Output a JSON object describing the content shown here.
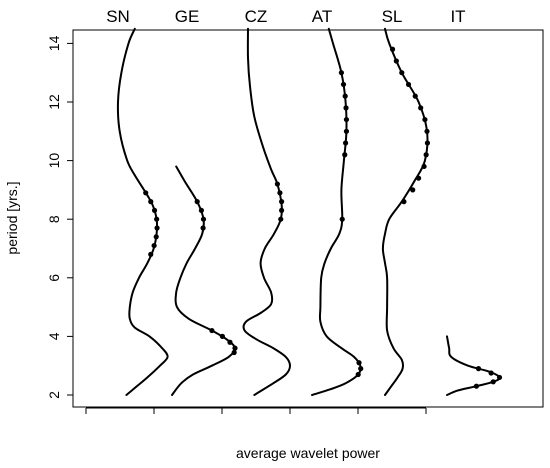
{
  "chart_data": {
    "type": "line",
    "title": "",
    "xlabel": "average wavelet power",
    "ylabel": "period [yrs.]",
    "ylim": [
      2,
      14.5
    ],
    "yticks": [
      2,
      4,
      6,
      8,
      10,
      12,
      14
    ],
    "x_tick_count": 6,
    "grid": false,
    "legend": "none",
    "line_color": "#000000",
    "series": [
      {
        "name": "SN",
        "points": [
          {
            "y": 14.5,
            "x": 0.4
          },
          {
            "y": 14.0,
            "x": 0.25
          },
          {
            "y": 13.0,
            "x": 0.08
          },
          {
            "y": 12.0,
            "x": 0.0
          },
          {
            "y": 11.0,
            "x": 0.04
          },
          {
            "y": 10.0,
            "x": 0.22
          },
          {
            "y": 9.5,
            "x": 0.4
          },
          {
            "y": 9.0,
            "x": 0.62
          },
          {
            "y": 8.5,
            "x": 0.82
          },
          {
            "y": 8.0,
            "x": 0.92
          },
          {
            "y": 7.5,
            "x": 0.92
          },
          {
            "y": 7.0,
            "x": 0.85
          },
          {
            "y": 6.5,
            "x": 0.7
          },
          {
            "y": 6.0,
            "x": 0.5
          },
          {
            "y": 5.5,
            "x": 0.35
          },
          {
            "y": 5.0,
            "x": 0.28
          },
          {
            "y": 4.6,
            "x": 0.28
          },
          {
            "y": 4.3,
            "x": 0.4
          },
          {
            "y": 4.0,
            "x": 0.75
          },
          {
            "y": 3.6,
            "x": 1.05
          },
          {
            "y": 3.3,
            "x": 1.18
          },
          {
            "y": 3.0,
            "x": 1.0
          },
          {
            "y": 2.6,
            "x": 0.7
          },
          {
            "y": 2.3,
            "x": 0.45
          },
          {
            "y": 2.0,
            "x": 0.2
          }
        ],
        "significant": [
          {
            "y": 8.9,
            "x": 0.66
          },
          {
            "y": 8.6,
            "x": 0.78
          },
          {
            "y": 8.3,
            "x": 0.87
          },
          {
            "y": 8.0,
            "x": 0.92
          },
          {
            "y": 7.7,
            "x": 0.93
          },
          {
            "y": 7.4,
            "x": 0.91
          },
          {
            "y": 7.1,
            "x": 0.86
          },
          {
            "y": 6.8,
            "x": 0.78
          }
        ]
      },
      {
        "name": "GE",
        "points": [
          {
            "y": 9.8,
            "x": 0.1
          },
          {
            "y": 9.3,
            "x": 0.3
          },
          {
            "y": 8.6,
            "x": 0.6
          },
          {
            "y": 8.0,
            "x": 0.75
          },
          {
            "y": 7.5,
            "x": 0.72
          },
          {
            "y": 7.0,
            "x": 0.55
          },
          {
            "y": 6.5,
            "x": 0.35
          },
          {
            "y": 6.0,
            "x": 0.2
          },
          {
            "y": 5.5,
            "x": 0.1
          },
          {
            "y": 5.0,
            "x": 0.12
          },
          {
            "y": 4.6,
            "x": 0.4
          },
          {
            "y": 4.2,
            "x": 0.95
          },
          {
            "y": 3.9,
            "x": 1.3
          },
          {
            "y": 3.6,
            "x": 1.5
          },
          {
            "y": 3.3,
            "x": 1.35
          },
          {
            "y": 3.0,
            "x": 0.95
          },
          {
            "y": 2.7,
            "x": 0.5
          },
          {
            "y": 2.4,
            "x": 0.22
          },
          {
            "y": 2.0,
            "x": 0.0
          }
        ],
        "significant": [
          {
            "y": 8.6,
            "x": 0.6
          },
          {
            "y": 8.3,
            "x": 0.7
          },
          {
            "y": 8.0,
            "x": 0.75
          },
          {
            "y": 7.7,
            "x": 0.74
          },
          {
            "y": 4.2,
            "x": 0.95
          },
          {
            "y": 4.0,
            "x": 1.2
          },
          {
            "y": 3.8,
            "x": 1.38
          },
          {
            "y": 3.6,
            "x": 1.5
          },
          {
            "y": 3.45,
            "x": 1.48
          }
        ]
      },
      {
        "name": "CZ",
        "points": [
          {
            "y": 14.5,
            "x": 0.0
          },
          {
            "y": 13.5,
            "x": 0.0
          },
          {
            "y": 12.5,
            "x": 0.05
          },
          {
            "y": 11.5,
            "x": 0.15
          },
          {
            "y": 10.5,
            "x": 0.35
          },
          {
            "y": 9.7,
            "x": 0.55
          },
          {
            "y": 9.2,
            "x": 0.7
          },
          {
            "y": 8.5,
            "x": 0.8
          },
          {
            "y": 8.0,
            "x": 0.78
          },
          {
            "y": 7.5,
            "x": 0.62
          },
          {
            "y": 7.0,
            "x": 0.4
          },
          {
            "y": 6.5,
            "x": 0.3
          },
          {
            "y": 6.0,
            "x": 0.38
          },
          {
            "y": 5.5,
            "x": 0.55
          },
          {
            "y": 5.1,
            "x": 0.55
          },
          {
            "y": 4.8,
            "x": 0.3
          },
          {
            "y": 4.5,
            "x": -0.05
          },
          {
            "y": 4.2,
            "x": -0.08
          },
          {
            "y": 3.9,
            "x": 0.2
          },
          {
            "y": 3.6,
            "x": 0.6
          },
          {
            "y": 3.3,
            "x": 0.9
          },
          {
            "y": 3.0,
            "x": 1.0
          },
          {
            "y": 2.7,
            "x": 0.9
          },
          {
            "y": 2.4,
            "x": 0.6
          },
          {
            "y": 2.0,
            "x": 0.15
          }
        ],
        "significant": [
          {
            "y": 9.2,
            "x": 0.7
          },
          {
            "y": 8.9,
            "x": 0.76
          },
          {
            "y": 8.6,
            "x": 0.8
          },
          {
            "y": 8.3,
            "x": 0.8
          },
          {
            "y": 8.0,
            "x": 0.78
          }
        ]
      },
      {
        "name": "AT",
        "points": [
          {
            "y": 14.5,
            "x": 0.4
          },
          {
            "y": 14.0,
            "x": 0.5
          },
          {
            "y": 13.0,
            "x": 0.7
          },
          {
            "y": 12.0,
            "x": 0.8
          },
          {
            "y": 11.0,
            "x": 0.82
          },
          {
            "y": 10.0,
            "x": 0.76
          },
          {
            "y": 9.0,
            "x": 0.7
          },
          {
            "y": 8.0,
            "x": 0.72
          },
          {
            "y": 7.5,
            "x": 0.65
          },
          {
            "y": 7.0,
            "x": 0.45
          },
          {
            "y": 6.5,
            "x": 0.3
          },
          {
            "y": 6.0,
            "x": 0.22
          },
          {
            "y": 5.0,
            "x": 0.2
          },
          {
            "y": 4.5,
            "x": 0.2
          },
          {
            "y": 4.0,
            "x": 0.35
          },
          {
            "y": 3.6,
            "x": 0.7
          },
          {
            "y": 3.3,
            "x": 1.0
          },
          {
            "y": 3.0,
            "x": 1.15
          },
          {
            "y": 2.7,
            "x": 1.1
          },
          {
            "y": 2.4,
            "x": 0.8
          },
          {
            "y": 2.2,
            "x": 0.45
          },
          {
            "y": 2.0,
            "x": 0.0
          }
        ],
        "significant": [
          {
            "y": 13.0,
            "x": 0.7
          },
          {
            "y": 12.6,
            "x": 0.75
          },
          {
            "y": 12.2,
            "x": 0.79
          },
          {
            "y": 11.8,
            "x": 0.81
          },
          {
            "y": 11.4,
            "x": 0.82
          },
          {
            "y": 11.0,
            "x": 0.82
          },
          {
            "y": 10.6,
            "x": 0.8
          },
          {
            "y": 10.2,
            "x": 0.78
          },
          {
            "y": 8.0,
            "x": 0.72
          },
          {
            "y": 3.1,
            "x": 1.12
          },
          {
            "y": 2.9,
            "x": 1.16
          },
          {
            "y": 2.7,
            "x": 1.1
          }
        ]
      },
      {
        "name": "SL",
        "points": [
          {
            "y": 14.5,
            "x": 0.0
          },
          {
            "y": 14.0,
            "x": 0.1
          },
          {
            "y": 13.0,
            "x": 0.4
          },
          {
            "y": 12.0,
            "x": 0.8
          },
          {
            "y": 11.0,
            "x": 1.0
          },
          {
            "y": 10.0,
            "x": 0.95
          },
          {
            "y": 9.3,
            "x": 0.7
          },
          {
            "y": 8.6,
            "x": 0.4
          },
          {
            "y": 8.0,
            "x": 0.1
          },
          {
            "y": 7.5,
            "x": 0.0
          },
          {
            "y": 7.0,
            "x": -0.05
          },
          {
            "y": 6.5,
            "x": 0.0
          },
          {
            "y": 6.0,
            "x": 0.05
          },
          {
            "y": 5.0,
            "x": 0.05
          },
          {
            "y": 4.2,
            "x": 0.05
          },
          {
            "y": 3.6,
            "x": 0.2
          },
          {
            "y": 3.2,
            "x": 0.4
          },
          {
            "y": 2.9,
            "x": 0.42
          },
          {
            "y": 2.6,
            "x": 0.3
          },
          {
            "y": 2.3,
            "x": 0.15
          },
          {
            "y": 2.0,
            "x": 0.0
          }
        ],
        "significant": [
          {
            "y": 13.8,
            "x": 0.18
          },
          {
            "y": 13.4,
            "x": 0.27
          },
          {
            "y": 13.0,
            "x": 0.4
          },
          {
            "y": 12.6,
            "x": 0.56
          },
          {
            "y": 12.2,
            "x": 0.72
          },
          {
            "y": 11.8,
            "x": 0.85
          },
          {
            "y": 11.4,
            "x": 0.95
          },
          {
            "y": 11.0,
            "x": 1.0
          },
          {
            "y": 10.6,
            "x": 1.01
          },
          {
            "y": 10.2,
            "x": 0.98
          },
          {
            "y": 9.8,
            "x": 0.93
          },
          {
            "y": 9.4,
            "x": 0.8
          },
          {
            "y": 9.0,
            "x": 0.66
          },
          {
            "y": 8.6,
            "x": 0.45
          }
        ]
      },
      {
        "name": "IT",
        "points": [
          {
            "y": 4.0,
            "x": 0.0
          },
          {
            "y": 3.6,
            "x": 0.05
          },
          {
            "y": 3.3,
            "x": 0.1
          },
          {
            "y": 3.0,
            "x": 0.5
          },
          {
            "y": 2.8,
            "x": 1.0
          },
          {
            "y": 2.6,
            "x": 1.25
          },
          {
            "y": 2.45,
            "x": 1.1
          },
          {
            "y": 2.3,
            "x": 0.7
          },
          {
            "y": 2.15,
            "x": 0.25
          },
          {
            "y": 2.0,
            "x": 0.0
          }
        ],
        "significant": [
          {
            "y": 2.9,
            "x": 0.75
          },
          {
            "y": 2.75,
            "x": 1.05
          },
          {
            "y": 2.6,
            "x": 1.25
          },
          {
            "y": 2.45,
            "x": 1.1
          },
          {
            "y": 2.3,
            "x": 0.7
          }
        ]
      }
    ]
  }
}
